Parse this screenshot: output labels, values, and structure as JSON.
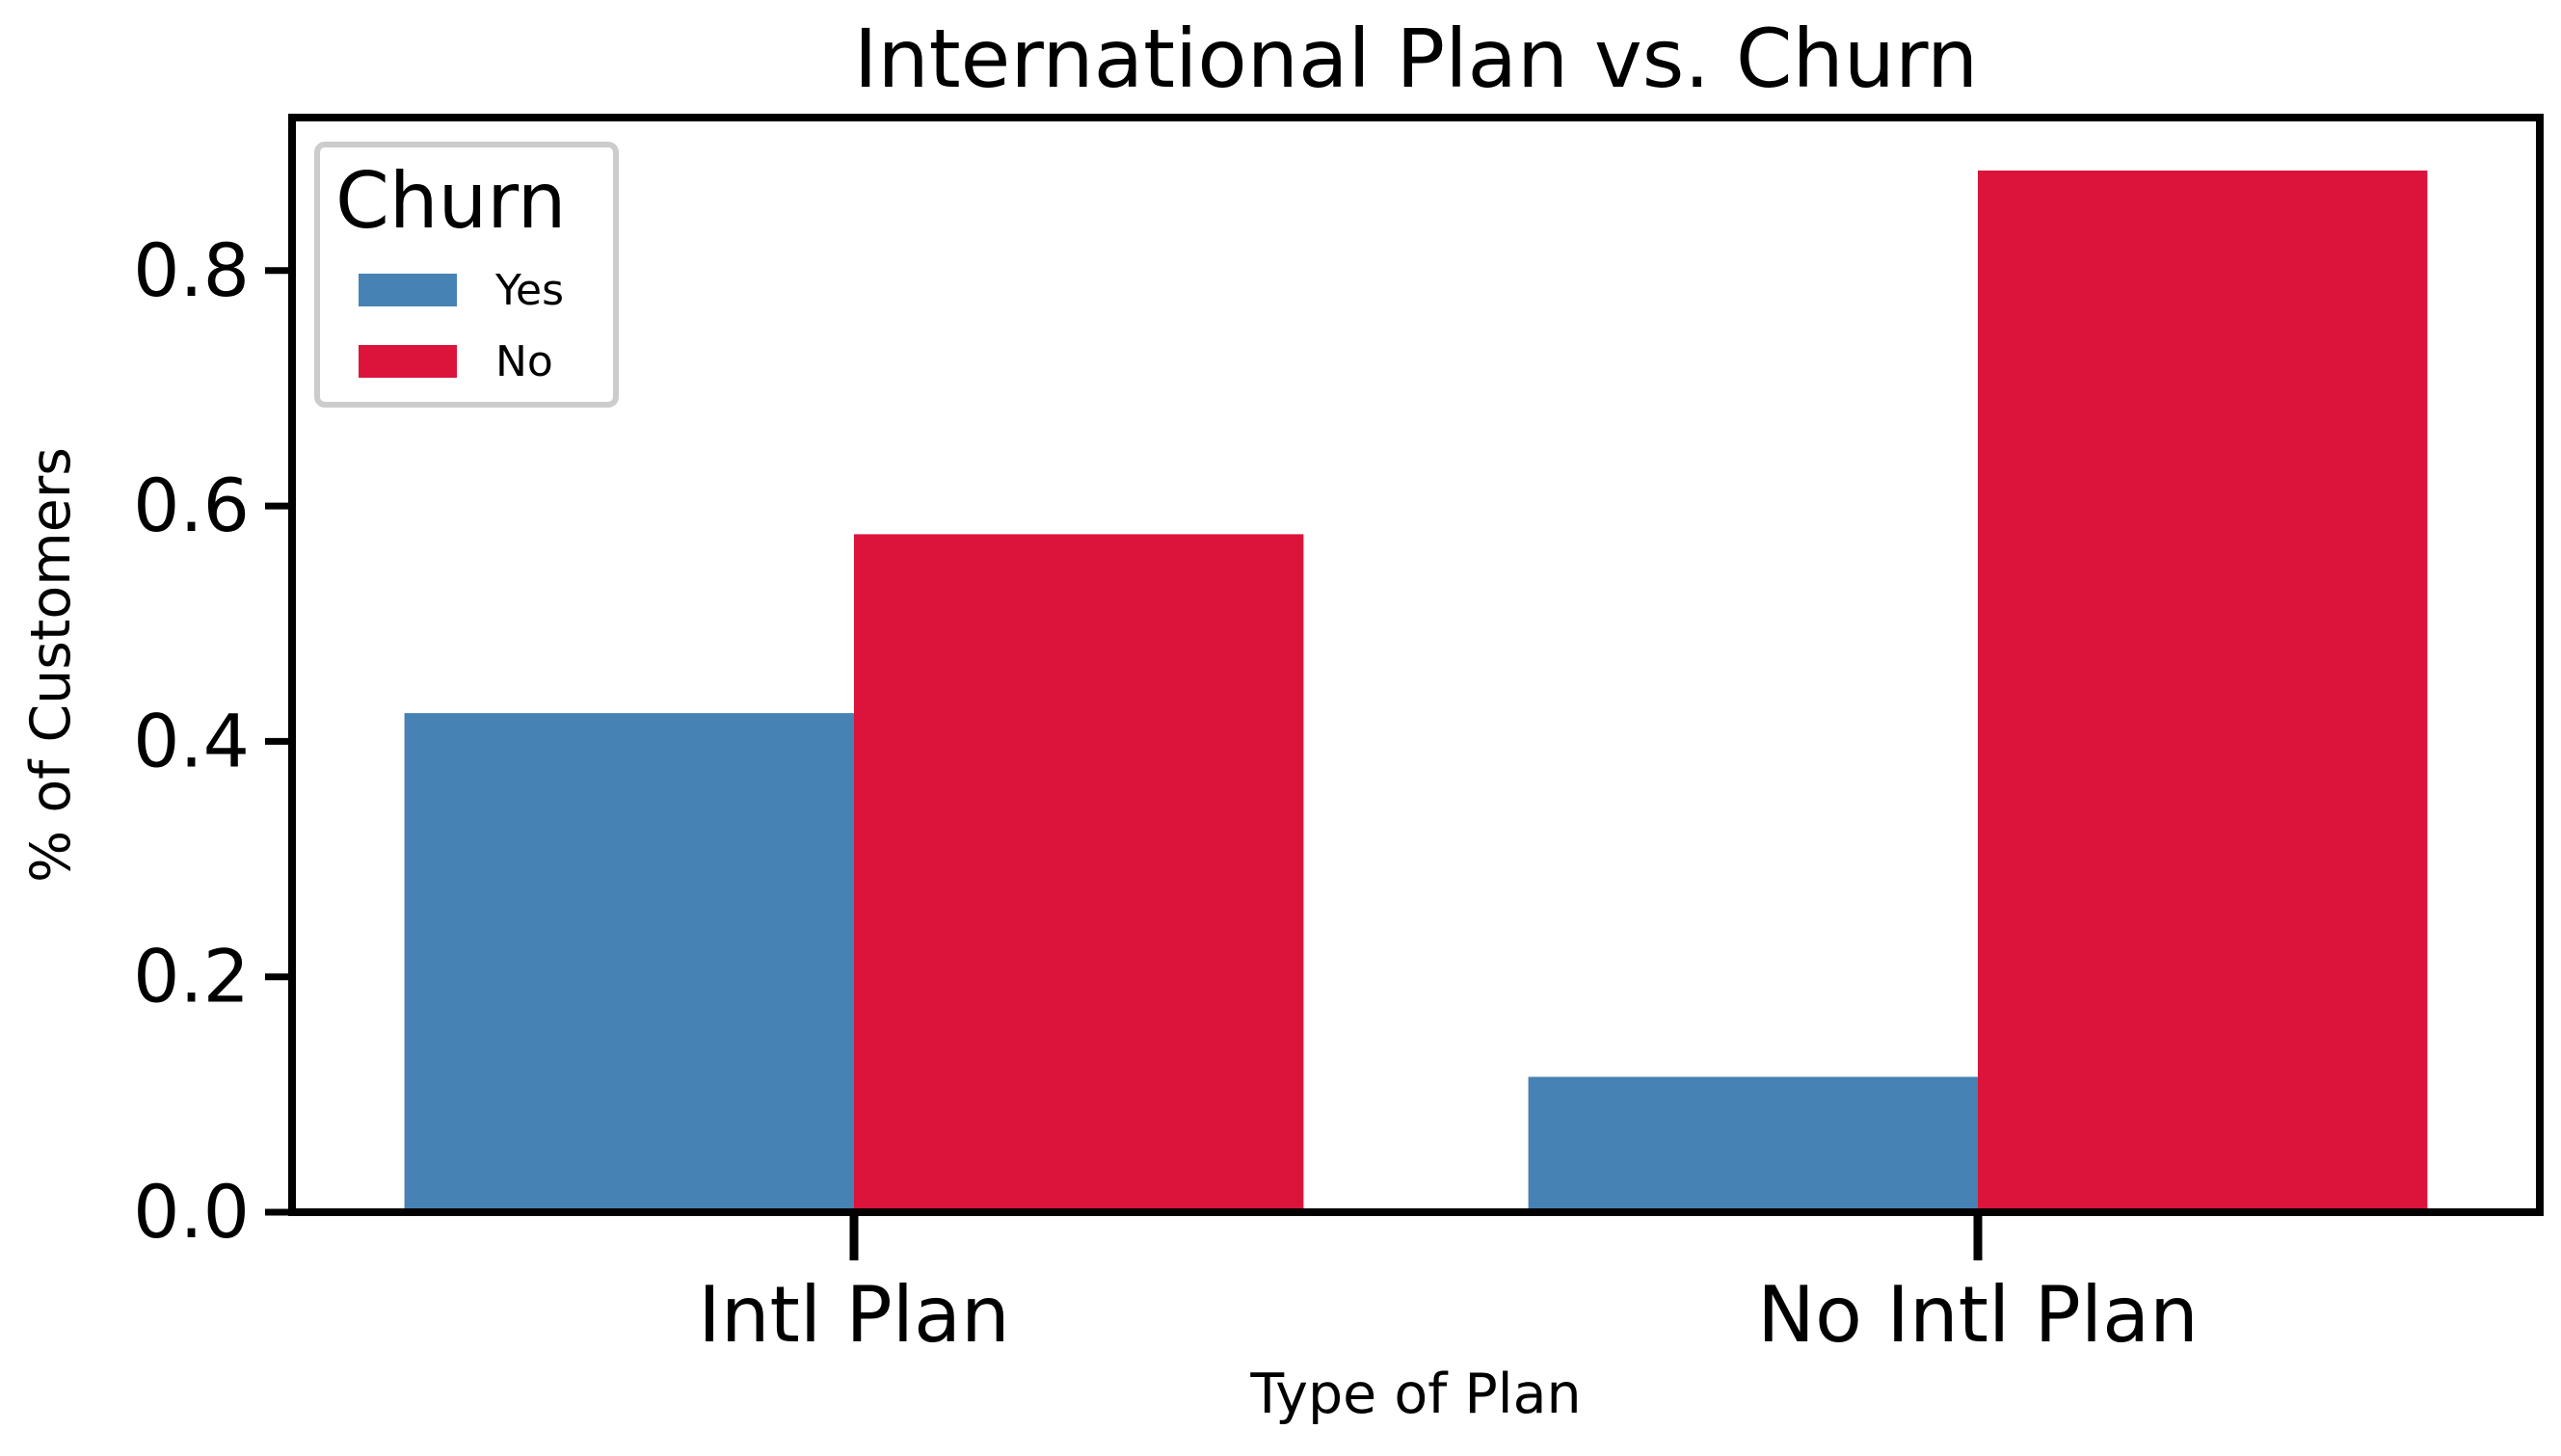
{
  "chart_data": {
    "type": "bar",
    "title": "International Plan vs. Churn",
    "xlabel": "Type of Plan",
    "ylabel": "% of Customers",
    "categories": [
      "Intl Plan",
      "No Intl Plan"
    ],
    "series": [
      {
        "name": "Yes",
        "color": "#4682b4",
        "values": [
          0.424,
          0.115
        ]
      },
      {
        "name": "No",
        "color": "#dc143c",
        "values": [
          0.576,
          0.885
        ]
      }
    ],
    "ylim": [
      0,
      0.93
    ],
    "yticks": [
      0.0,
      0.2,
      0.4,
      0.6,
      0.8
    ],
    "ytick_labels": [
      "0.0",
      "0.2",
      "0.4",
      "0.6",
      "0.8"
    ],
    "legend": {
      "title": "Churn",
      "position": "top-left",
      "labels": [
        "Yes",
        "No"
      ]
    },
    "grid": false
  }
}
